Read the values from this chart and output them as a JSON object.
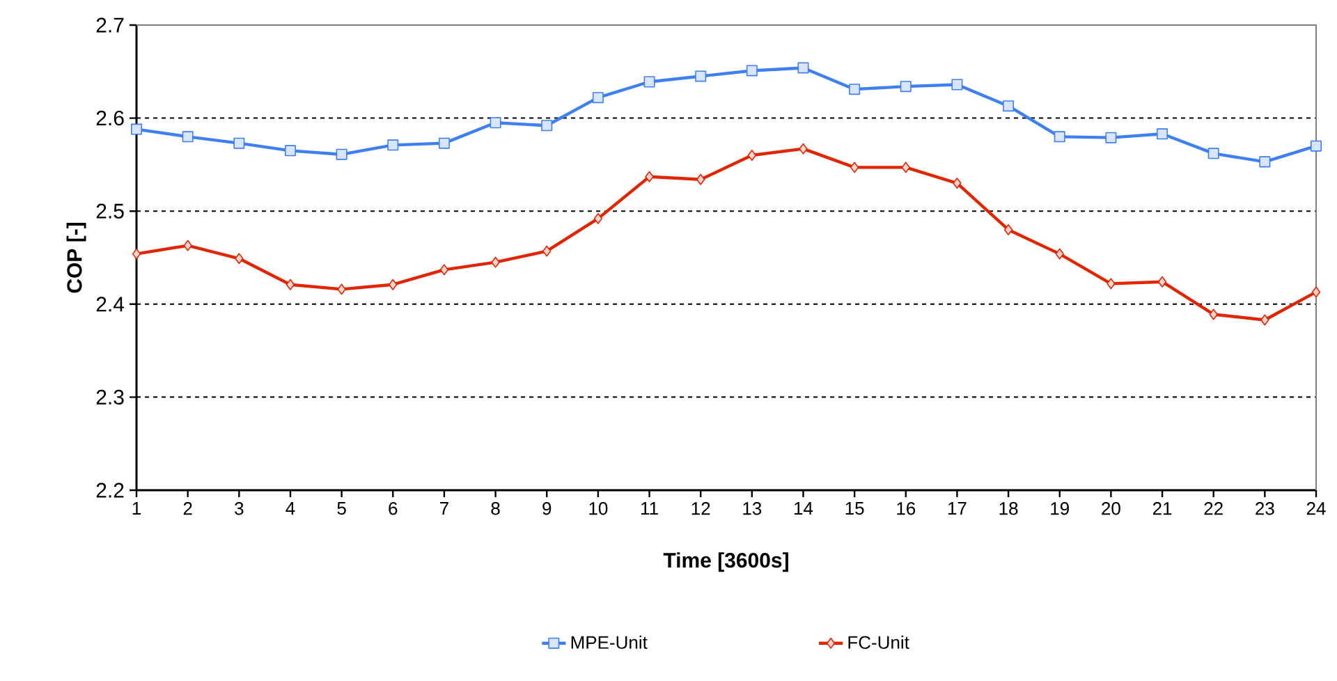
{
  "chart_data": {
    "type": "line",
    "xlabel": "Time [3600s]",
    "ylabel": "COP [-]",
    "x": [
      1,
      2,
      3,
      4,
      5,
      6,
      7,
      8,
      9,
      10,
      11,
      12,
      13,
      14,
      15,
      16,
      17,
      18,
      19,
      20,
      21,
      22,
      23,
      24
    ],
    "xlim": [
      1,
      24
    ],
    "xticks": [
      1,
      2,
      3,
      4,
      5,
      6,
      7,
      8,
      9,
      10,
      11,
      12,
      13,
      14,
      15,
      16,
      17,
      18,
      19,
      20,
      21,
      22,
      23,
      24
    ],
    "ylim": [
      2.2,
      2.7
    ],
    "yticks": [
      2.2,
      2.3,
      2.4,
      2.5,
      2.6,
      2.7
    ],
    "grid": "y",
    "legend": "bottom",
    "series": [
      {
        "name": "MPE-Unit",
        "color": "#3f7ff5",
        "marker": "square",
        "values": [
          2.588,
          2.58,
          2.573,
          2.565,
          2.561,
          2.571,
          2.573,
          2.595,
          2.592,
          2.622,
          2.639,
          2.645,
          2.651,
          2.654,
          2.631,
          2.634,
          2.636,
          2.613,
          2.58,
          2.579,
          2.583,
          2.562,
          2.553,
          2.57
        ]
      },
      {
        "name": "FC-Unit",
        "color": "#e32400",
        "marker": "diamond",
        "values": [
          2.454,
          2.463,
          2.449,
          2.421,
          2.416,
          2.421,
          2.437,
          2.445,
          2.457,
          2.492,
          2.537,
          2.534,
          2.56,
          2.567,
          2.547,
          2.547,
          2.53,
          2.48,
          2.454,
          2.422,
          2.424,
          2.389,
          2.383,
          2.413
        ]
      }
    ]
  }
}
